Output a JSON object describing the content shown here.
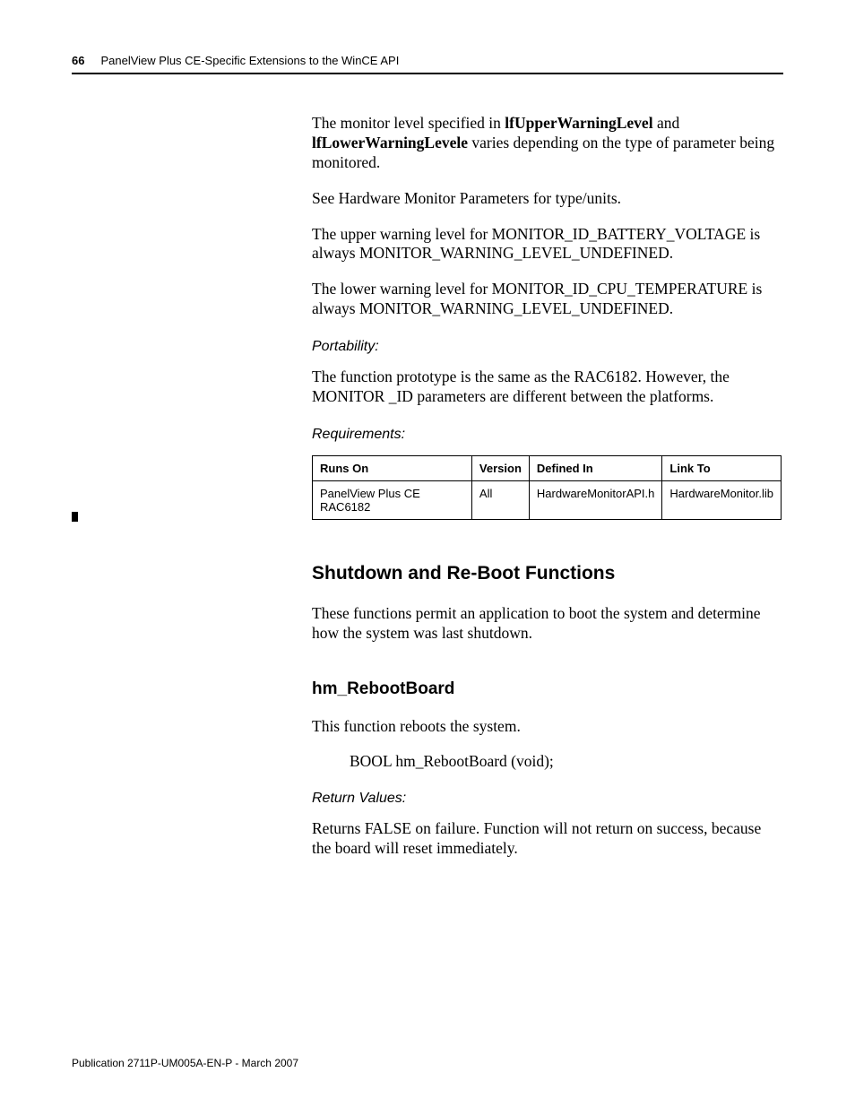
{
  "header": {
    "page_number": "66",
    "title": "PanelView Plus CE-Specific Extensions to the WinCE API"
  },
  "body": {
    "p1_pre": "The monitor level specified in ",
    "p1_b1": "lfUpperWarningLevel",
    "p1_mid": " and ",
    "p1_b2": "lfLowerWarningLevele",
    "p1_post": " varies depending on the type of parameter being monitored.",
    "p2": "See Hardware Monitor Parameters for type/units.",
    "p3": "The upper warning level for MONITOR_ID_BATTERY_VOLTAGE is always MONITOR_WARNING_LEVEL_UNDEFINED.",
    "p4": "The lower warning level for MONITOR_ID_CPU_TEMPERATURE is always MONITOR_WARNING_LEVEL_UNDEFINED.",
    "portability_h": "Portability:",
    "portability_p": "The function prototype is the same as the RAC6182. However, the MONITOR _ID parameters are different between the platforms.",
    "requirements_h": "Requirements:",
    "table": {
      "headers": {
        "c0": "Runs On",
        "c1": "Version",
        "c2": "Defined In",
        "c3": "Link To"
      },
      "row": {
        "c0": "PanelView Plus CE RAC6182",
        "c1": "All",
        "c2": "HardwareMonitorAPI.h",
        "c3": "HardwareMonitor.lib"
      }
    },
    "shutdown_h": "Shutdown and Re-Boot Functions",
    "shutdown_p": "These functions permit an application to boot the system and determine how the system was last shutdown.",
    "reboot_h": "hm_RebootBoard",
    "reboot_p1": "This function reboots the system.",
    "reboot_code": "BOOL hm_RebootBoard (void);",
    "return_h": "Return Values:",
    "return_p": "Returns FALSE on failure. Function will not return on success, because the board will reset immediately."
  },
  "footer": "Publication 2711P-UM005A-EN-P - March 2007"
}
